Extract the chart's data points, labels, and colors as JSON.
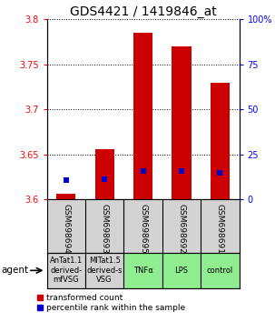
{
  "title": "GDS4421 / 1419846_at",
  "samples": [
    "GSM698694",
    "GSM698693",
    "GSM698695",
    "GSM698692",
    "GSM698691"
  ],
  "agents": [
    "AnTat1.1\nderived-\nmfVSG",
    "MITat1.5\nderived-s\nVSG",
    "TNFα",
    "LPS",
    "control"
  ],
  "agent_colors": [
    "#d3d3d3",
    "#d3d3d3",
    "#90ee90",
    "#90ee90",
    "#90ee90"
  ],
  "red_bar_bottom": 3.6,
  "red_bar_tops": [
    3.607,
    3.656,
    3.785,
    3.77,
    3.73
  ],
  "blue_dot_values": [
    3.622,
    3.623,
    3.632,
    3.632,
    3.63
  ],
  "ylim_left": [
    3.6,
    3.8
  ],
  "ylim_right": [
    0,
    100
  ],
  "yticks_left": [
    3.6,
    3.65,
    3.7,
    3.75,
    3.8
  ],
  "ytick_labels_left": [
    "3.6",
    "3.65",
    "3.7",
    "3.75",
    "3.8"
  ],
  "yticks_right": [
    0,
    25,
    50,
    75,
    100
  ],
  "ytick_labels_right": [
    "0",
    "25",
    "50",
    "75",
    "100%"
  ],
  "bar_width": 0.5,
  "bar_color": "#cc0000",
  "dot_color": "#0000cc",
  "dot_size": 18,
  "grid_color": "#000000",
  "title_fontsize": 10,
  "tick_fontsize": 7,
  "label_fontsize": 6.5,
  "gsm_fontsize": 6.5,
  "legend_fontsize": 6.5,
  "agent_fontsize": 6.0
}
